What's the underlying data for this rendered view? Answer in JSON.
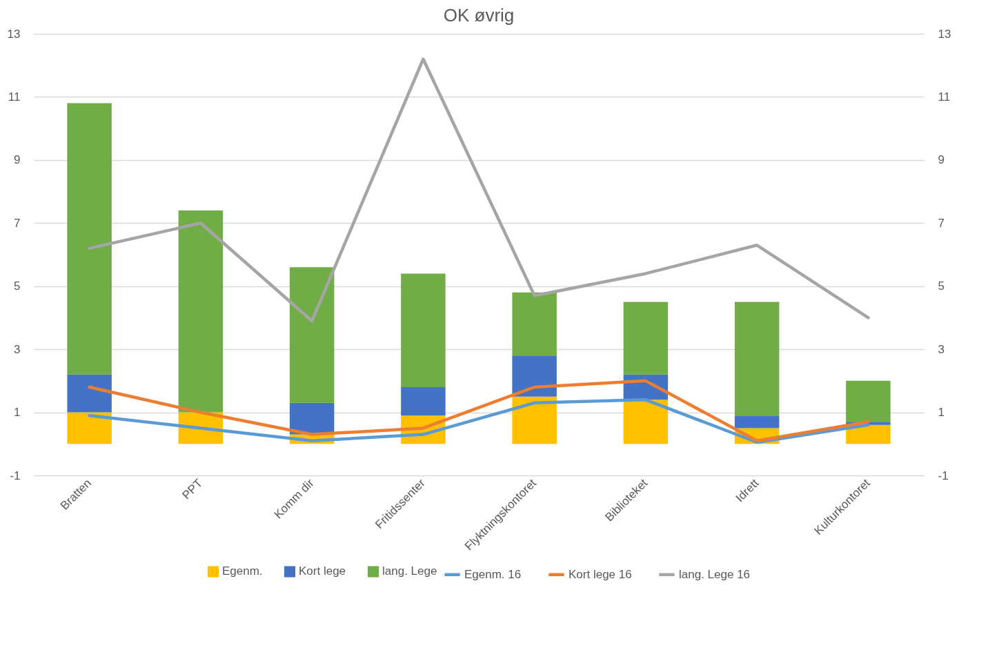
{
  "chart_data": {
    "type": "bar",
    "title": "OK øvrig",
    "stacked": true,
    "grid": "y",
    "legend": "bottom",
    "categories": [
      "Bratten",
      "PPT",
      "Komm dir",
      "Fritidssenter",
      "Flyktningskontoret",
      "Biblioteket",
      "Idrett",
      "Kulturkontoret"
    ],
    "ylim": [
      -1,
      13
    ],
    "yticks": [
      -1,
      1,
      3,
      5,
      7,
      9,
      11,
      13
    ],
    "y2lim": [
      -1,
      13
    ],
    "y2ticks": [
      -1,
      1,
      3,
      5,
      7,
      9,
      11,
      13
    ],
    "series": [
      {
        "name": "Egenm.",
        "color": "#ffc000",
        "values": [
          1.0,
          1.0,
          0.3,
          0.9,
          1.5,
          1.4,
          0.5,
          0.6
        ]
      },
      {
        "name": "Kort lege",
        "color": "#4472c4",
        "values": [
          1.2,
          0,
          1.0,
          0.9,
          1.3,
          0.8,
          0.4,
          0.1
        ]
      },
      {
        "name": "lang. Lege",
        "color": "#70ad47",
        "values": [
          8.6,
          6.4,
          4.3,
          3.6,
          2.0,
          2.3,
          3.6,
          1.3
        ]
      },
      {
        "name": "Egenm. 16",
        "type": "line",
        "axis": "y2",
        "color": "#5b9bd5",
        "values": [
          0.9,
          0.5,
          0.1,
          0.3,
          1.3,
          1.4,
          0.05,
          0.6
        ]
      },
      {
        "name": "Kort lege 16",
        "type": "line",
        "axis": "y2",
        "color": "#ed7d31",
        "values": [
          1.8,
          1.0,
          0.3,
          0.5,
          1.8,
          2.0,
          0.1,
          0.7
        ]
      },
      {
        "name": "lang. Lege 16",
        "type": "line",
        "axis": "y2",
        "color": "#a5a5a5",
        "values": [
          6.2,
          7.0,
          3.9,
          12.2,
          4.7,
          5.4,
          6.3,
          4.0
        ]
      }
    ]
  }
}
